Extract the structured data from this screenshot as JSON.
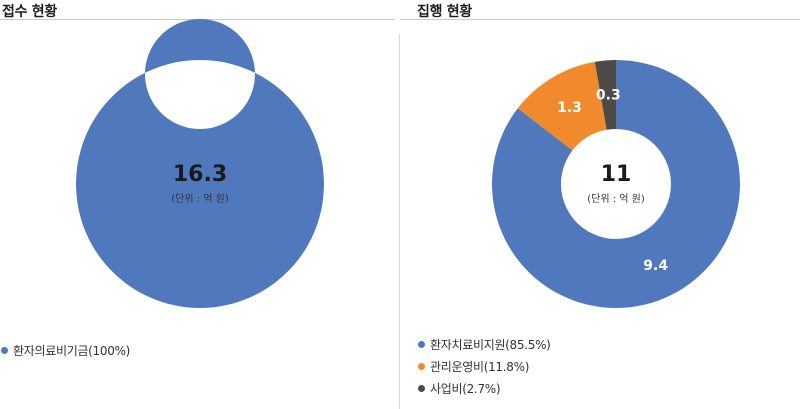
{
  "panels": {
    "left": {
      "title": "접수 현황"
    },
    "right": {
      "title": "집행 현황"
    }
  },
  "chart_data": [
    {
      "type": "pie",
      "title": "접수 현황",
      "total": "16.3",
      "unit": "(단위 : 억 원)",
      "slices": [
        {
          "name": "환자의료비기금(100%)",
          "value": 16.3,
          "label": "",
          "color": "#5079bd"
        }
      ]
    },
    {
      "type": "pie",
      "title": "집행 현황",
      "total": "11",
      "unit": "(단위 : 억 원)",
      "slices": [
        {
          "name": "환자치료비지원(85.5%)",
          "value": 9.4,
          "label": "9.4",
          "color": "#5079bd"
        },
        {
          "name": "관리운영비(11.8%)",
          "value": 1.3,
          "label": "1.3",
          "color": "#f08a2c"
        },
        {
          "name": "사업비(2.7%)",
          "value": 0.3,
          "label": "0.3",
          "color": "#4e4a47"
        }
      ]
    }
  ]
}
